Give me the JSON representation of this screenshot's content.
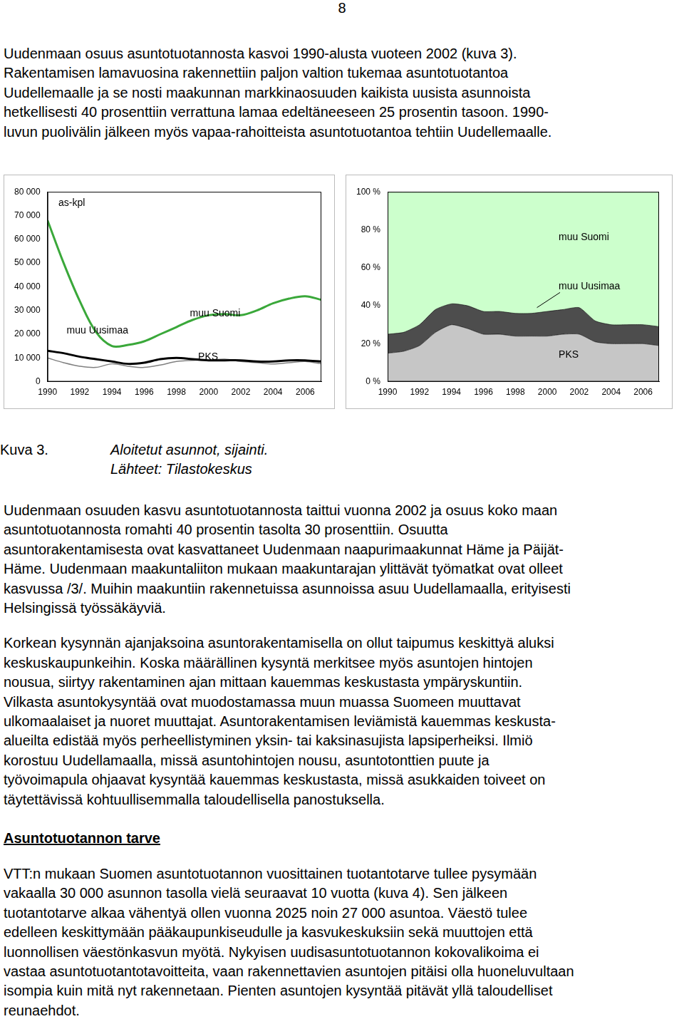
{
  "page_number": "8",
  "paragraphs_before": [
    [
      "Uudenmaan osuus asuntotuotannosta kasvoi 1990-alusta vuoteen 2002 (kuva 3).",
      "Rakentamisen lamavuosina rakennettiin paljon valtion tukemaa asuntotuotantoa",
      "Uudellemaalle ja se nosti maakunnan markkinaosuuden kaikista uusista asunnoista",
      "hetkellisesti 40 prosenttiin verrattuna lamaa edeltäneeseen 25 prosentin tasoon. 1990-",
      "luvun puolivälin jälkeen myös vapaa-rahoitteista asuntotuotantoa tehtiin Uudellemaalle."
    ]
  ],
  "chart_data": [
    {
      "type": "line",
      "ylabel": "as-kpl",
      "x": [
        1990,
        1991,
        1992,
        1993,
        1994,
        1995,
        1996,
        1997,
        1998,
        1999,
        2000,
        2001,
        2002,
        2003,
        2004,
        2005,
        2006,
        2007
      ],
      "xlim": [
        1990,
        2007
      ],
      "xticks": [
        1990,
        1992,
        1994,
        1996,
        1998,
        2000,
        2002,
        2004,
        2006
      ],
      "ylim": [
        0,
        80000
      ],
      "yticks": [
        0,
        {
          "value": 10000,
          "label": "10 000"
        },
        {
          "value": 20000,
          "label": "20 000"
        },
        {
          "value": 30000,
          "label": "30 000"
        },
        {
          "value": 40000,
          "label": "40 000"
        },
        {
          "value": 50000,
          "label": "50 000"
        },
        {
          "value": 60000,
          "label": "60 000"
        },
        {
          "value": 70000,
          "label": "70 000"
        },
        {
          "value": 80000,
          "label": "80 000"
        }
      ],
      "grid": false,
      "series": [
        {
          "name": "muu Suomi",
          "color": "#3aa83a",
          "values": [
            68000,
            50000,
            34000,
            21000,
            15000,
            15500,
            17000,
            20000,
            23000,
            26000,
            28000,
            28500,
            28000,
            30000,
            33000,
            35000,
            36000,
            34500
          ]
        },
        {
          "name": "muu Uusimaa",
          "color": "#000000",
          "values": [
            13000,
            12000,
            10500,
            9500,
            8500,
            7500,
            8000,
            9500,
            10000,
            9500,
            9000,
            9000,
            9000,
            8500,
            8500,
            9000,
            9000,
            8500
          ]
        },
        {
          "name": "PKS",
          "color": "#808080",
          "values": [
            10000,
            8000,
            6500,
            6000,
            7500,
            6500,
            6000,
            7000,
            8500,
            9000,
            9000,
            9500,
            8500,
            8000,
            7500,
            8000,
            8500,
            7500
          ]
        }
      ]
    },
    {
      "type": "area",
      "stacked": true,
      "x": [
        1990,
        1991,
        1992,
        1993,
        1994,
        1995,
        1996,
        1997,
        1998,
        1999,
        2000,
        2001,
        2002,
        2003,
        2004,
        2005,
        2006,
        2007
      ],
      "xlim": [
        1990,
        2007
      ],
      "xticks": [
        1990,
        1992,
        1994,
        1996,
        1998,
        2000,
        2002,
        2004,
        2006
      ],
      "ylim": [
        0,
        100
      ],
      "yticks": [
        {
          "value": 0,
          "label": "0 %"
        },
        {
          "value": 20,
          "label": "20 %"
        },
        {
          "value": 40,
          "label": "40 %"
        },
        {
          "value": 60,
          "label": "60 %"
        },
        {
          "value": 80,
          "label": "80 %"
        },
        {
          "value": 100,
          "label": "100 %"
        }
      ],
      "grid": false,
      "series": [
        {
          "name": "PKS",
          "color": "#c6c6c6",
          "values": [
            15,
            16,
            19,
            26,
            30,
            28,
            25,
            25,
            24,
            24,
            24,
            25,
            25,
            21,
            20,
            20,
            20,
            19
          ]
        },
        {
          "name": "muu Uusimaa",
          "color": "#4d4d4d",
          "values": [
            10,
            10,
            11,
            12,
            11,
            12,
            12,
            12,
            12,
            12,
            13,
            13,
            14,
            11,
            10,
            10,
            10,
            10
          ]
        },
        {
          "name": "muu Suomi",
          "color": "#ccffcc",
          "values": [
            75,
            74,
            70,
            62,
            59,
            60,
            63,
            63,
            64,
            64,
            63,
            62,
            61,
            68,
            70,
            70,
            70,
            71
          ]
        }
      ]
    }
  ],
  "caption": {
    "label": "Kuva 3.",
    "title": "Aloitetut asunnot, sijainti.",
    "source": "Lähteet: Tilastokeskus"
  },
  "paragraphs_after": [
    [
      "Uudenmaan osuuden kasvu asuntotuotannosta taittui vuonna 2002 ja osuus koko maan",
      "asuntotuotannosta romahti 40 prosentin tasolta 30 prosenttiin. Osuutta",
      "asuntorakentamisesta ovat kasvattaneet Uudenmaan naapurimaakunnat Häme ja Päijät-",
      "Häme. Uudenmaan maakuntaliiton mukaan maakuntarajan ylittävät työmatkat ovat olleet",
      "kasvussa /3/. Muihin maakuntiin rakennetuissa asunnoissa asuu Uudellamaalla, erityisesti",
      "Helsingissä työssäkäyviä."
    ],
    [
      "Korkean kysynnän ajanjaksoina asuntorakentamisella on ollut taipumus keskittyä aluksi",
      "keskuskaupunkeihin. Koska määrällinen kysyntä merkitsee myös asuntojen hintojen",
      "nousua, siirtyy rakentaminen ajan mittaan kauemmas keskustasta ympäryskuntiin.",
      "Vilkasta asuntokysyntää ovat muodostamassa muun muassa Suomeen muuttavat",
      "ulkomaalaiset ja nuoret muuttajat. Asuntorakentamisen leviämistä kauemmas keskusta-",
      "alueilta edistää myös perheellistyminen yksin- tai kaksinasujista lapsiperheiksi. Ilmiö",
      "korostuu Uudellamaalla, missä asuntohintojen nousu, asuntotonttien puute ja",
      "työvoimapula ohjaavat kysyntää kauemmas keskustasta, missä asukkaiden toiveet on",
      "täytettävissä kohtuullisemmalla taloudellisella panostuksella."
    ]
  ],
  "heading": "Asuntotuotannon tarve",
  "paragraphs_final": [
    [
      "VTT:n mukaan Suomen asuntotuotannon vuosittainen tuotantotarve tullee pysymään",
      "vakaalla 30 000 asunnon tasolla vielä seuraavat 10 vuotta (kuva 4). Sen jälkeen",
      "tuotantotarve alkaa vähentyä ollen vuonna 2025 noin 27 000 asuntoa. Väestö tulee",
      "edelleen keskittymään pääkaupunkiseudulle ja kasvukeskuksiin sekä muuttojen että",
      "luonnollisen väestönkasvun myötä. Nykyisen uudisasuntotuotannon kokovalikoima ei",
      "vastaa asuntotuotantotavoitteita, vaan rakennettavien asuntojen pitäisi olla huoneluvultaan",
      "isompia kuin mitä nyt rakennetaan. Pienten asuntojen kysyntää pitävät yllä taloudelliset",
      "reunaehdot."
    ]
  ]
}
